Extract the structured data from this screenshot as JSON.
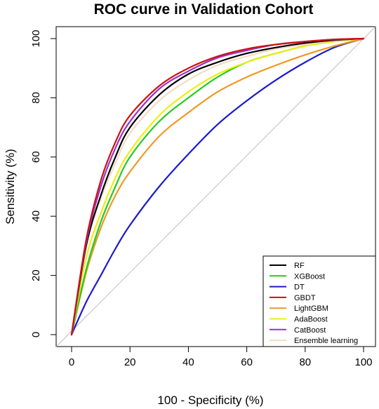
{
  "chart_data": {
    "type": "line",
    "title": "ROC curve in Validation Cohort",
    "xlabel": "100 - Specificity (%)",
    "ylabel": "Sensitivity (%)",
    "xlim": [
      0,
      100
    ],
    "ylim": [
      0,
      100
    ],
    "x_ticks": [
      "0",
      "20",
      "40",
      "60",
      "80",
      "100"
    ],
    "y_ticks": [
      "0",
      "20",
      "40",
      "60",
      "80",
      "100"
    ],
    "grid": false,
    "legend_position": "bottom-right",
    "reference_line": {
      "type": "diagonal",
      "color": "#bebebe"
    },
    "series": [
      {
        "name": "RF",
        "color": "#000000",
        "x": [
          0,
          5,
          10,
          15,
          20,
          30,
          40,
          50,
          60,
          70,
          80,
          90,
          100
        ],
        "y": [
          0,
          30,
          47,
          60,
          70,
          81,
          88,
          92,
          95,
          97,
          98.5,
          99.5,
          100
        ]
      },
      {
        "name": "XGBoost",
        "color": "#22cc22",
        "x": [
          0,
          5,
          10,
          15,
          20,
          30,
          40,
          50,
          60,
          70,
          80,
          90,
          100
        ],
        "y": [
          0,
          22,
          38,
          50,
          60,
          72,
          80,
          87,
          92,
          95,
          97.5,
          99,
          100
        ]
      },
      {
        "name": "DT",
        "color": "#1a1acc",
        "x": [
          0,
          5,
          10,
          15,
          20,
          30,
          40,
          50,
          60,
          70,
          80,
          90,
          100
        ],
        "y": [
          0,
          11,
          20,
          29,
          37,
          50,
          61,
          71,
          79,
          86,
          92,
          97,
          100
        ]
      },
      {
        "name": "GBDT",
        "color": "#cc1111",
        "x": [
          0,
          5,
          10,
          15,
          20,
          30,
          40,
          50,
          60,
          70,
          80,
          90,
          100
        ],
        "y": [
          0,
          32,
          52,
          65,
          74,
          84,
          90,
          94,
          96.5,
          98,
          99,
          99.7,
          100
        ]
      },
      {
        "name": "LightGBM",
        "color": "#ee9922",
        "x": [
          0,
          5,
          10,
          15,
          20,
          30,
          40,
          50,
          60,
          70,
          80,
          90,
          100
        ],
        "y": [
          0,
          21,
          36,
          47,
          55,
          67,
          75,
          82,
          87,
          91,
          94.5,
          97.5,
          100
        ]
      },
      {
        "name": "AdaBoost",
        "color": "#eeee11",
        "x": [
          0,
          5,
          10,
          15,
          20,
          30,
          40,
          50,
          60,
          70,
          80,
          90,
          100
        ],
        "y": [
          0,
          26,
          41,
          53,
          62,
          74,
          82,
          88,
          92,
          95,
          97.5,
          99,
          100
        ]
      },
      {
        "name": "CatBoost",
        "color": "#9933cc",
        "x": [
          0,
          5,
          10,
          15,
          20,
          30,
          40,
          50,
          60,
          70,
          80,
          90,
          100
        ],
        "y": [
          0,
          31,
          50,
          63,
          72,
          83,
          89,
          93.5,
          96,
          98,
          99,
          99.7,
          100
        ]
      },
      {
        "name": "Ensemble learning",
        "color": "#f2dcc4",
        "x": [
          0,
          5,
          10,
          15,
          20,
          30,
          40,
          50,
          60,
          70,
          80,
          90,
          100
        ],
        "y": [
          0,
          30,
          46,
          58,
          68,
          79,
          86,
          91,
          94,
          96.5,
          98,
          99.3,
          100
        ]
      }
    ]
  }
}
